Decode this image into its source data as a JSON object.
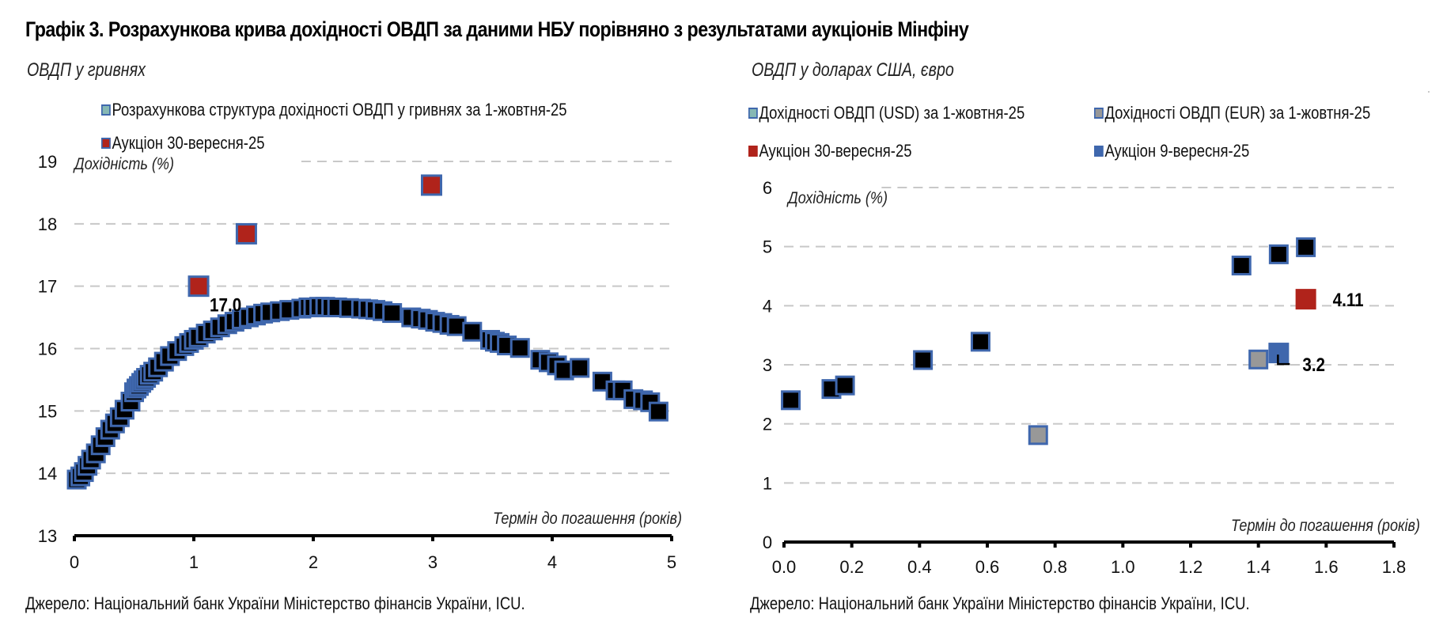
{
  "title": "Графік 3. Розрахункова крива дохідності ОВДП за даними НБУ порівняно з результатами аукціонів Мінфіну",
  "colors": {
    "curve_fill": "#86b8b4",
    "marker_border": "#3f67ad",
    "auction_red": "#b0231b",
    "auction_blue": "#3f67ad",
    "eur_gray": "#989898",
    "grid": "#c8c8c8"
  },
  "left_panel": {
    "subtitle": "ОВДП у гривнях",
    "legend": [
      {
        "label": "Розрахункова структура дохідності ОВДП у гривнях за 1-жовтня-25",
        "marker": "curve"
      },
      {
        "label": "Аукціон 30-вересня-25",
        "marker": "auction_red"
      }
    ],
    "source": "Джерело: Національний банк України Міністерство фінансів України, ICU."
  },
  "right_panel": {
    "subtitle": "ОВДП у доларах США, євро",
    "legend": [
      {
        "label": "Дохідності ОВДП (USD) за 1-жовтня-25",
        "marker": "curve"
      },
      {
        "label": "Дохідності ОВДП (EUR) за 1-жовтня-25",
        "marker": "eur_gray"
      },
      {
        "label": "Аукціон 30-вересня-25",
        "marker": "auction_red"
      },
      {
        "label": "Аукціон 9-вересня-25",
        "marker": "auction_blue"
      }
    ],
    "source": "Джерело: Національний банк України Міністерство фінансів України, ICU."
  },
  "chart_data": [
    {
      "type": "scatter",
      "title": "ОВДП у гривнях",
      "xlabel": "Термін до погашення (років)",
      "ylabel": "Дохідність (%)",
      "xlim": [
        0,
        5
      ],
      "ylim": [
        13,
        19
      ],
      "xticks": [
        0,
        1,
        2,
        3,
        4,
        5
      ],
      "yticks": [
        13,
        14,
        15,
        16,
        17,
        18,
        19
      ],
      "grid": "horizontal-dashed",
      "legend_position": "top-left",
      "series": [
        {
          "name": "Розрахункова структура дохідності ОВДП у гривнях за 1-жовтня-25",
          "color_key": "curve",
          "x": [
            0.02,
            0.05,
            0.08,
            0.11,
            0.14,
            0.18,
            0.22,
            0.26,
            0.3,
            0.34,
            0.38,
            0.42,
            0.47,
            0.5,
            0.52,
            0.54,
            0.56,
            0.58,
            0.6,
            0.63,
            0.66,
            0.7,
            0.75,
            0.8,
            0.86,
            0.92,
            0.96,
            1.0,
            1.04,
            1.1,
            1.16,
            1.22,
            1.28,
            1.34,
            1.4,
            1.46,
            1.52,
            1.58,
            1.64,
            1.72,
            1.8,
            1.9,
            1.96,
            2.0,
            2.05,
            2.1,
            2.15,
            2.2,
            2.3,
            2.4,
            2.46,
            2.52,
            2.58,
            2.66,
            2.82,
            2.9,
            2.96,
            3.02,
            3.08,
            3.14,
            3.2,
            3.33,
            3.48,
            3.52,
            3.56,
            3.62,
            3.73,
            3.9,
            3.97,
            4.04,
            4.1,
            4.23,
            4.42,
            4.53,
            4.59,
            4.68,
            4.76,
            4.82,
            4.89
          ],
          "y": [
            13.9,
            13.95,
            14.02,
            14.12,
            14.22,
            14.32,
            14.45,
            14.58,
            14.7,
            14.8,
            14.9,
            15.02,
            15.15,
            15.3,
            15.36,
            15.4,
            15.45,
            15.49,
            15.53,
            15.58,
            15.63,
            15.7,
            15.79,
            15.88,
            15.96,
            16.04,
            16.09,
            16.14,
            16.18,
            16.24,
            16.29,
            16.34,
            16.39,
            16.43,
            16.47,
            16.5,
            16.53,
            16.56,
            16.58,
            16.6,
            16.62,
            16.64,
            16.66,
            16.66,
            16.67,
            16.67,
            16.66,
            16.66,
            16.65,
            16.64,
            16.63,
            16.62,
            16.6,
            16.57,
            16.5,
            16.48,
            16.46,
            16.43,
            16.41,
            16.38,
            16.36,
            16.27,
            16.14,
            16.11,
            16.09,
            16.05,
            16.01,
            15.82,
            15.78,
            15.73,
            15.65,
            15.69,
            15.47,
            15.33,
            15.33,
            15.19,
            15.17,
            15.14,
            14.99
          ]
        },
        {
          "name": "Аукціон 30-вересня-25",
          "color_key": "auction_red",
          "x": [
            1.04,
            1.44,
            2.99
          ],
          "y": [
            17.0,
            17.84,
            18.62
          ]
        }
      ],
      "annotations": [
        {
          "text": "17.0",
          "x": 1.04,
          "y": 17.0
        }
      ]
    },
    {
      "type": "scatter",
      "title": "ОВДП у доларах США, євро",
      "xlabel": "Термін до погашення (років)",
      "ylabel": "Дохідність (%)",
      "xlim": [
        0,
        1.8
      ],
      "ylim": [
        0,
        6
      ],
      "xticks": [
        "0.0",
        "0.2",
        "0.4",
        "0.6",
        "0.8",
        "1.0",
        "1.2",
        "1.4",
        "1.6",
        "1.8"
      ],
      "yticks": [
        0,
        1,
        2,
        3,
        4,
        5,
        6
      ],
      "grid": "horizontal-dashed",
      "legend_position": "top",
      "series": [
        {
          "name": "Дохідності ОВДП (USD) за 1-жовтня-25",
          "color_key": "curve",
          "x": [
            0.02,
            0.14,
            0.18,
            0.41,
            0.58,
            1.35,
            1.46,
            1.54
          ],
          "y": [
            2.4,
            2.59,
            2.65,
            3.08,
            3.39,
            4.68,
            4.87,
            4.99
          ]
        },
        {
          "name": "Дохідності ОВДП (EUR) за 1-жовтня-25",
          "color_key": "eur_gray",
          "x": [
            0.75,
            1.4
          ],
          "y": [
            1.81,
            3.09
          ]
        },
        {
          "name": "Аукціон 30-вересня-25",
          "color_key": "auction_red",
          "x": [
            1.54
          ],
          "y": [
            4.11
          ]
        },
        {
          "name": "Аукціон 9-вересня-25",
          "color_key": "auction_blue",
          "x": [
            1.46
          ],
          "y": [
            3.2
          ]
        }
      ],
      "annotations": [
        {
          "text": "4.11",
          "x": 1.54,
          "y": 4.11
        },
        {
          "text": "3.2",
          "x": 1.46,
          "y": 3.2
        }
      ]
    }
  ]
}
